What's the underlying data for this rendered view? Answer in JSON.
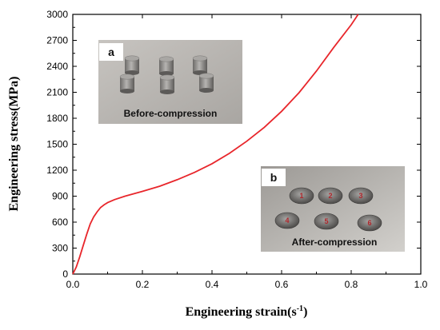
{
  "chart_data": {
    "type": "line",
    "xlabel_main": "Engineering strain(s",
    "xlabel_sup": "-1",
    "xlabel_end": ")",
    "ylabel": "Engineering stress(MPa)",
    "xlim": [
      0,
      1.0
    ],
    "ylim": [
      0,
      3000
    ],
    "xticks": [
      "0.0",
      "0.2",
      "0.4",
      "0.6",
      "0.8",
      "1.0"
    ],
    "yticks": [
      "0",
      "300",
      "600",
      "900",
      "1200",
      "1500",
      "1800",
      "2100",
      "2400",
      "2700",
      "3000"
    ],
    "grid": false,
    "series": [
      {
        "color": "#e8262b",
        "x": [
          0.0,
          0.01,
          0.02,
          0.03,
          0.04,
          0.05,
          0.06,
          0.07,
          0.08,
          0.09,
          0.1,
          0.12,
          0.15,
          0.2,
          0.25,
          0.3,
          0.35,
          0.4,
          0.45,
          0.5,
          0.55,
          0.6,
          0.65,
          0.7,
          0.75,
          0.8,
          0.82
        ],
        "y": [
          0,
          80,
          200,
          330,
          460,
          580,
          660,
          720,
          770,
          800,
          825,
          860,
          900,
          955,
          1015,
          1090,
          1175,
          1275,
          1395,
          1535,
          1695,
          1880,
          2095,
          2345,
          2620,
          2880,
          3000
        ]
      }
    ]
  },
  "insets": [
    {
      "tag": "a",
      "caption": "Before-compression",
      "sample_labels": []
    },
    {
      "tag": "b",
      "caption": "After-compression",
      "sample_labels": [
        "1",
        "2",
        "3",
        "4",
        "5",
        "6"
      ]
    }
  ],
  "colors": {
    "curve": "#e8262b",
    "axis": "#000000",
    "photo_bg": "#b9b6b2"
  }
}
